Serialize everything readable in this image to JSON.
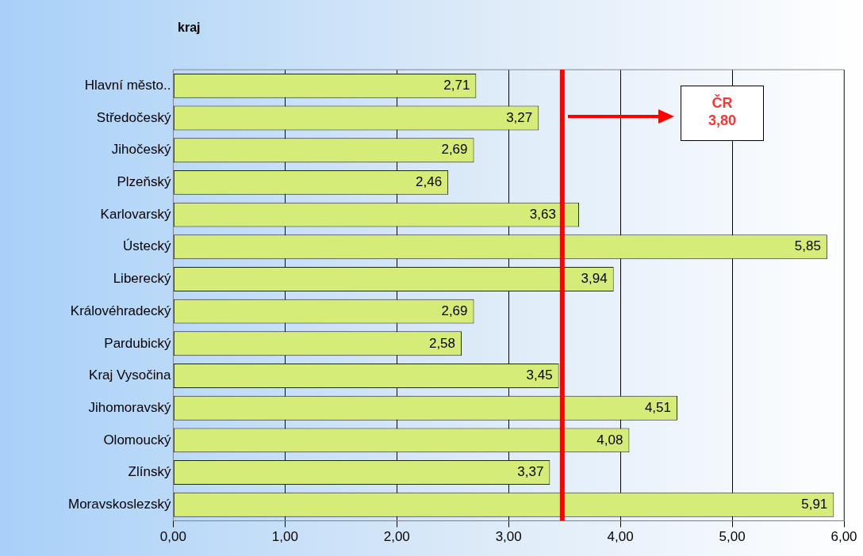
{
  "chart_data": {
    "type": "bar",
    "orientation": "horizontal",
    "ylabel": "kraj",
    "categories": [
      "Hlavní město..",
      "Středočeský",
      "Jihočeský",
      "Plzeňský",
      "Karlovarský",
      "Ústecký",
      "Liberecký",
      "Královéhradecký",
      "Pardubický",
      "Kraj Vysočina",
      "Jihomoravský",
      "Olomoucký",
      "Zlínský",
      "Moravskoslezský"
    ],
    "values": [
      2.71,
      3.27,
      2.69,
      2.46,
      3.63,
      5.85,
      3.94,
      2.69,
      2.58,
      3.45,
      4.51,
      4.08,
      3.37,
      5.91
    ],
    "value_labels": [
      "2,71",
      "3,27",
      "2,69",
      "2,46",
      "3,63",
      "5,85",
      "3,94",
      "2,69",
      "2,58",
      "3,45",
      "4,51",
      "4,08",
      "3,37",
      "5,91"
    ],
    "color": "#d6ec78",
    "xlim": [
      0,
      6
    ],
    "xticks": [
      {
        "value": 0,
        "label": "0,00"
      },
      {
        "value": 1,
        "label": "1,00"
      },
      {
        "value": 2,
        "label": "2,00"
      },
      {
        "value": 3,
        "label": "3,00"
      },
      {
        "value": 4,
        "label": "4,00"
      },
      {
        "value": 5,
        "label": "5,00"
      },
      {
        "value": 6,
        "label": "6,00"
      }
    ],
    "grid": "x",
    "legend": false,
    "ref_lines": [
      {
        "axis": "x",
        "value": 3.48,
        "color": "#ff0000"
      }
    ],
    "annotations": [
      "ČR\n3,80"
    ]
  }
}
